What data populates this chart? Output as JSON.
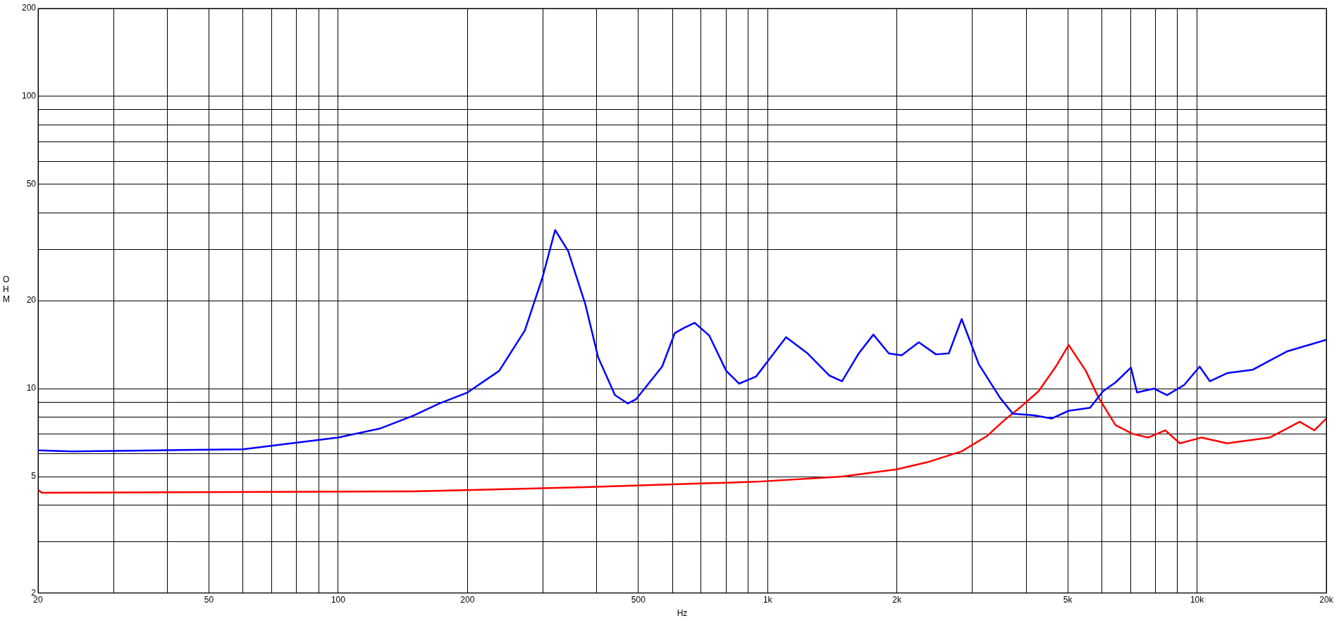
{
  "chart_data": {
    "type": "line",
    "xlabel": "Hz",
    "ylabel": "OHM",
    "log": "xy",
    "grid": true,
    "legend": false,
    "marker": "none",
    "line_style": "solid",
    "xlim": [
      20,
      20000
    ],
    "ylim": [
      2,
      200
    ],
    "xticks": [
      20,
      {
        "value": 30,
        "label": null
      },
      {
        "value": 40,
        "label": null
      },
      50,
      {
        "value": 60,
        "label": null
      },
      {
        "value": 70,
        "label": null
      },
      {
        "value": 80,
        "label": null
      },
      {
        "value": 90,
        "label": null
      },
      100,
      200,
      {
        "value": 300,
        "label": null
      },
      {
        "value": 400,
        "label": null
      },
      500,
      {
        "value": 600,
        "label": null
      },
      {
        "value": 700,
        "label": null
      },
      {
        "value": 800,
        "label": null
      },
      {
        "value": 900,
        "label": null
      },
      {
        "value": 1000,
        "label": "1k"
      },
      {
        "value": 2000,
        "label": "2k"
      },
      {
        "value": 3000,
        "label": null
      },
      {
        "value": 4000,
        "label": null
      },
      {
        "value": 5000,
        "label": "5k"
      },
      {
        "value": 6000,
        "label": null
      },
      {
        "value": 7000,
        "label": null
      },
      {
        "value": 8000,
        "label": null
      },
      {
        "value": 9000,
        "label": null
      },
      {
        "value": 10000,
        "label": "10k"
      },
      {
        "value": 20000,
        "label": "20k"
      }
    ],
    "yticks": [
      2,
      {
        "value": 3,
        "label": null
      },
      {
        "value": 4,
        "label": null
      },
      5,
      {
        "value": 6,
        "label": null
      },
      {
        "value": 7,
        "label": null
      },
      {
        "value": 8,
        "label": null
      },
      {
        "value": 9,
        "label": null
      },
      10,
      20,
      {
        "value": 30,
        "label": null
      },
      {
        "value": 40,
        "label": null
      },
      50,
      {
        "value": 60,
        "label": null
      },
      {
        "value": 70,
        "label": null
      },
      {
        "value": 80,
        "label": null
      },
      {
        "value": 90,
        "label": null
      },
      100,
      200
    ],
    "series": [
      {
        "color": "#0000ff",
        "x": [
          20,
          24,
          38,
          60,
          100,
          125,
          150,
          172,
          200,
          237,
          272,
          299,
          320,
          343,
          376,
          403,
          441,
          472,
          494,
          568,
          608,
          637,
          676,
          731,
          801,
          858,
          940,
          1104,
          1239,
          1390,
          1490,
          1630,
          1763,
          1915,
          2051,
          2249,
          2466,
          2642,
          2831,
          3104,
          3478,
          3725,
          4178,
          4582,
          5024,
          5636,
          6040,
          6458,
          7016,
          7248,
          7944,
          8514,
          9335,
          10140,
          10710,
          11745,
          13470,
          16180,
          20000
        ],
        "values": [
          6.15,
          6.1,
          6.15,
          6.2,
          6.8,
          7.3,
          8.1,
          8.9,
          9.7,
          11.5,
          15.8,
          24,
          34.9,
          29.6,
          19.5,
          12.8,
          9.5,
          8.9,
          9.2,
          11.9,
          15.5,
          16.1,
          16.8,
          15.2,
          11.5,
          10.4,
          11,
          15,
          13.2,
          11.1,
          10.6,
          13.2,
          15.3,
          13.2,
          13,
          14.4,
          13.1,
          13.2,
          17.3,
          12.1,
          9.3,
          8.2,
          8.1,
          7.9,
          8.4,
          8.6,
          9.8,
          10.5,
          11.8,
          9.7,
          10,
          9.5,
          10.3,
          11.9,
          10.6,
          11.3,
          11.6,
          13.4,
          14.7
        ]
      },
      {
        "color": "#ff0000",
        "x": [
          20,
          20.4,
          150,
          376,
          940,
          1490,
          2005,
          2356,
          2831,
          3250,
          3557,
          3900,
          4275,
          4690,
          5024,
          5508,
          5900,
          6458,
          7080,
          7690,
          8430,
          9120,
          10230,
          11745,
          14770,
          17340,
          18750,
          20000
        ],
        "values": [
          4.5,
          4.4,
          4.45,
          4.6,
          4.8,
          5,
          5.3,
          5.6,
          6.1,
          6.9,
          7.8,
          8.7,
          9.8,
          11.9,
          14.1,
          11.5,
          9.3,
          7.5,
          7,
          6.8,
          7.2,
          6.5,
          6.8,
          6.5,
          6.8,
          7.7,
          7.2,
          7.9
        ]
      }
    ]
  }
}
